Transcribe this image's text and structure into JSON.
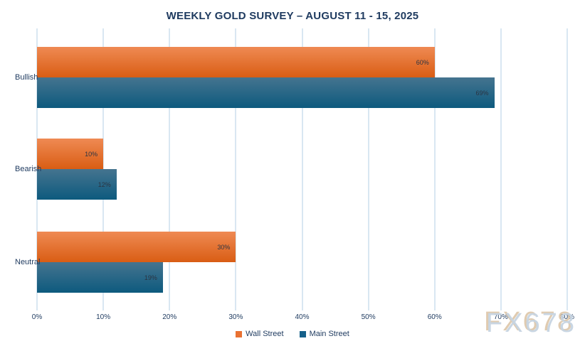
{
  "title": "WEEKLY GOLD SURVEY – AUGUST 11  - 15, 2025",
  "watermark": "FX678",
  "colors": {
    "text": "#1e3a5f",
    "value_label": "#2b3442",
    "grid": "#d9e7f2",
    "wall_street_top": "#ef8a53",
    "wall_street_bottom": "#d95d14",
    "main_street_top": "#45748f",
    "main_street_bottom": "#0d5a7e",
    "wall_street_legend": "#e97132",
    "main_street_legend": "#15608a"
  },
  "chart_data": {
    "type": "bar",
    "orientation": "horizontal",
    "title": "WEEKLY GOLD SURVEY – AUGUST 11  - 15, 2025",
    "categories": [
      "Bullish",
      "Bearish",
      "Neutral"
    ],
    "series": [
      {
        "name": "Wall Street",
        "values": [
          60,
          10,
          30
        ],
        "value_labels": [
          "60%",
          "10%",
          "30%"
        ]
      },
      {
        "name": "Main Street",
        "values": [
          69,
          12,
          19
        ],
        "value_labels": [
          "69%",
          "12%",
          "19%"
        ]
      }
    ],
    "xlabel": "",
    "ylabel": "",
    "xlim": [
      0,
      80
    ],
    "x_ticks": [
      "0%",
      "10%",
      "20%",
      "30%",
      "40%",
      "50%",
      "60%",
      "70%",
      "80%"
    ],
    "grid": "vertical",
    "legend_position": "bottom-center"
  },
  "legend": {
    "items": [
      {
        "label": "Wall Street"
      },
      {
        "label": "Main Street"
      }
    ]
  }
}
